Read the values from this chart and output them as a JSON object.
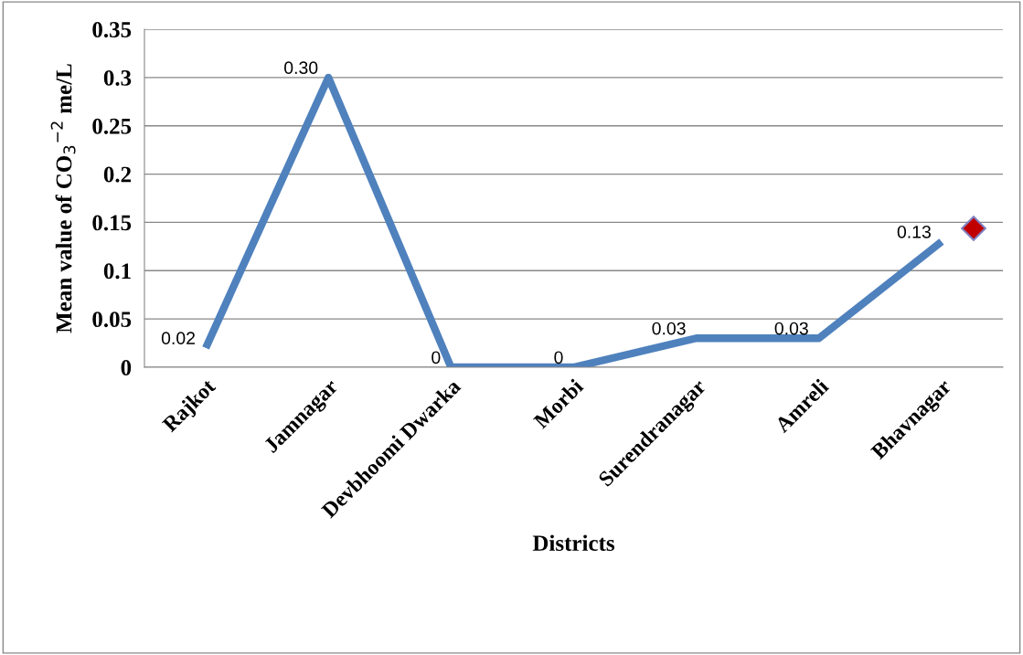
{
  "chart_data": {
    "type": "line",
    "xlabel": "Districts",
    "ylabel": "Mean value of CO$_{3}$$^{−2}$ me/L",
    "categories": [
      "Rajkot",
      "Jamnagar",
      "Devbhoomi Dwarka",
      "Morbi",
      "Surendranagar",
      "Amreli",
      "Bhavnagar"
    ],
    "series": [
      {
        "color": "#4f81bd",
        "values": [
          0.02,
          0.3,
          0,
          0,
          0.03,
          0.03,
          0.13
        ],
        "value_labels": [
          "0.02",
          "0.30",
          "0",
          "0",
          "0.03",
          "0.03",
          "0.13"
        ]
      }
    ],
    "ylim": [
      0,
      0.35
    ],
    "yticks": [
      0,
      0.05,
      0.1,
      0.15,
      0.2,
      0.25,
      0.3,
      0.35
    ],
    "grid": "y",
    "marker": "none",
    "line_style": "solid"
  }
}
